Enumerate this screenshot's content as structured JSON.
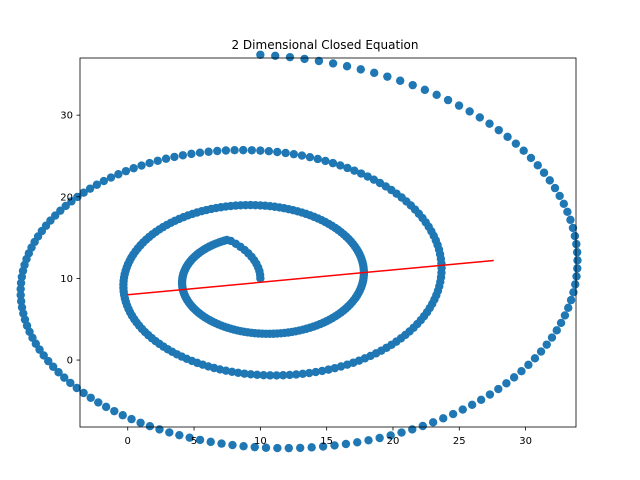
{
  "chart_data": {
    "type": "scatter",
    "title": "2 Dimensional Closed Equation",
    "xlabel": "",
    "ylabel": "",
    "xlim": [
      -3.6,
      33.8
    ],
    "ylim": [
      -8.2,
      37.0
    ],
    "xticks": [
      0,
      5,
      10,
      15,
      20,
      25,
      30
    ],
    "yticks": [
      0,
      10,
      20,
      30
    ],
    "grid": false,
    "series": [
      {
        "type": "scatter",
        "color": "#1f77b4",
        "spiral": {
          "center": [
            10.0,
            10.0
          ],
          "start_angle_deg": 90,
          "end_angle_deg": 1170,
          "start_point": [
            10.0,
            10.0
          ],
          "end_point": [
            21.2,
            35.0
          ],
          "growth_per_turn": 1.75,
          "turns": 3.0,
          "point_count": 460
        }
      },
      {
        "type": "line",
        "color": "#ff0000",
        "x": [
          0.0,
          27.6
        ],
        "y": [
          8.0,
          12.2
        ]
      }
    ]
  }
}
